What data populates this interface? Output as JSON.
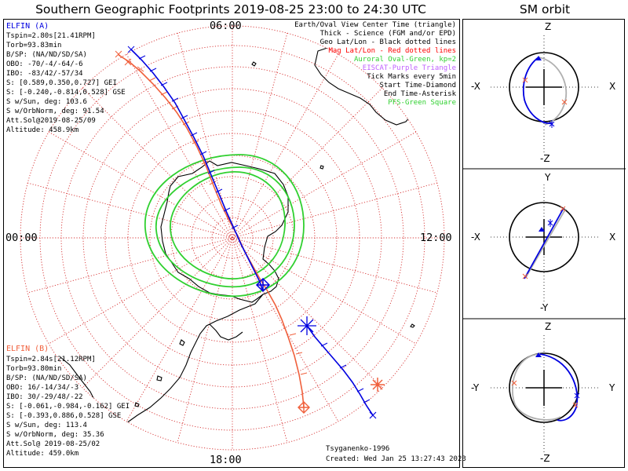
{
  "title": "Southern Geographic Footprints 2019-08-25 23:00 to 24:30 UTC",
  "sm_title": "SM orbit",
  "colors": {
    "probe_a": "#0000e0",
    "probe_b": "#f0603c",
    "grid": "#d63030",
    "oval": "#30d030",
    "eiscat": "#c060ff",
    "grey": "#b0b0b0"
  },
  "time_labels": {
    "top": "06:00",
    "left": "00:00",
    "right": "12:00",
    "bottom": "18:00"
  },
  "probe_a": {
    "name": "ELFIN (A)",
    "lines": [
      "Tspin=2.80s[21.41RPM]",
      "Torb=93.83min",
      "B/SP: (NA/ND/SD/SA)",
      "OBO: -70/-4/-64/-6",
      "IBO: -83/42/-57/34",
      "S: [0.589,0.350,0.727] GEI",
      "S: [-0.240,-0.814,0.528] GSE",
      "S w/Sun, deg: 103.6",
      "S w/OrbNorm, deg: 91.54",
      "Att.Sol@2019-08-25/09",
      "Altitude: 458.9km"
    ]
  },
  "probe_b": {
    "name": "ELFIN (B)",
    "lines": [
      "Tspin=2.84s[21.12RPM]",
      "Torb=93.80min",
      "B/SP: (NA/ND/SD/SA)",
      "OBO: 16/-14/34/-3",
      "IBO: 30/-29/48/-22",
      "S: [-0.061,-0.984,-0.162] GEI",
      "S: [-0.393,0.886,0.528] GSE",
      "S w/Sun, deg: 113.4",
      "S w/OrbNorm, deg: 35.36",
      "Att.Sol@ 2019-08-25/02",
      "Altitude: 459.0km"
    ]
  },
  "legend": [
    {
      "text": "Earth/Oval View Center Time (triangle)",
      "color": "#000000"
    },
    {
      "text": "Thick - Science (FGM and/or EPD)",
      "color": "#000000"
    },
    {
      "text": "Geo Lat/Lon - Black dotted lines",
      "color": "#000000"
    },
    {
      "text": "Mag Lat/Lon - Red dotted lines",
      "color": "#ff0000"
    },
    {
      "text": "Auroral Oval-Green, kp=2",
      "color": "#30d030"
    },
    {
      "text": "EISCAT-Purple Triangle",
      "color": "#c060ff"
    },
    {
      "text": "Tick Marks every 5min",
      "color": "#000000"
    },
    {
      "text": "Start Time-Diamond",
      "color": "#000000"
    },
    {
      "text": "End Time-Asterisk",
      "color": "#000000"
    },
    {
      "text": "PFS-Green Square",
      "color": "#30d030"
    }
  ],
  "credits": {
    "author": "Tsyganenko-1996",
    "created": "Created: Wed Jan 25 13:27:43 2023"
  },
  "orbit_panels": [
    {
      "top": "Z",
      "bottom": "-Z",
      "left": "-X",
      "right": "X"
    },
    {
      "top": "Y",
      "bottom": "-Y",
      "left": "-X",
      "right": "X"
    },
    {
      "top": "Z",
      "bottom": "-Z",
      "left": "-Y",
      "right": "Y"
    }
  ]
}
